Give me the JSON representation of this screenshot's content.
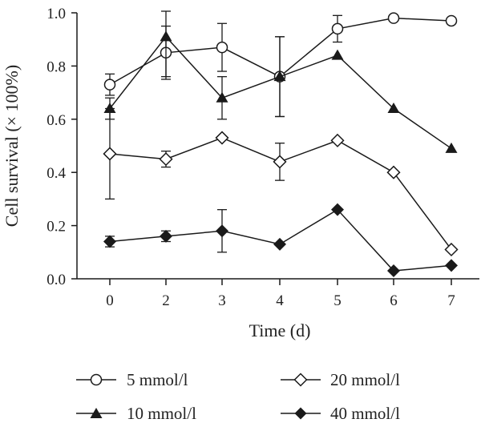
{
  "chart_data": {
    "type": "line",
    "xlabel": "Time (d)",
    "ylabel": "Cell survival (× 100%)",
    "x_categories": [
      "0",
      "2",
      "3",
      "4",
      "5",
      "6",
      "7"
    ],
    "ylim": [
      0.0,
      1.0
    ],
    "yticks": [
      "0.0",
      "0.2",
      "0.4",
      "0.6",
      "0.8",
      "1.0"
    ],
    "grid": false,
    "legend_position": "bottom",
    "series": [
      {
        "name": "5 mmol/l",
        "marker": "open-circle",
        "values": [
          0.73,
          0.85,
          0.87,
          0.76,
          0.94,
          0.98,
          0.97
        ],
        "errors": [
          0.04,
          0.1,
          0.09,
          0.15,
          0.05,
          0.0,
          0.0
        ]
      },
      {
        "name": "10 mmol/l",
        "marker": "filled-triangle",
        "values": [
          0.64,
          0.91,
          0.68,
          0.76,
          0.84,
          0.64,
          0.49
        ],
        "errors": [
          0.04,
          0.15,
          0.08,
          0.15,
          0.0,
          0.0,
          0.0
        ]
      },
      {
        "name": "20 mmol/l",
        "marker": "open-diamond",
        "values": [
          0.47,
          0.45,
          0.53,
          0.44,
          0.52,
          0.4,
          0.11
        ],
        "errors": [
          0.17,
          0.03,
          0.0,
          0.07,
          0.0,
          0.0,
          0.0
        ]
      },
      {
        "name": "40 mmol/l",
        "marker": "filled-diamond",
        "values": [
          0.14,
          0.16,
          0.18,
          0.13,
          0.26,
          0.03,
          0.05
        ],
        "errors": [
          0.02,
          0.02,
          0.08,
          0.0,
          0.0,
          0.0,
          0.0
        ]
      }
    ],
    "colors": {
      "line": "#1a1a1a",
      "marker_fill": "#1a1a1a",
      "open_fill": "#ffffff"
    }
  }
}
